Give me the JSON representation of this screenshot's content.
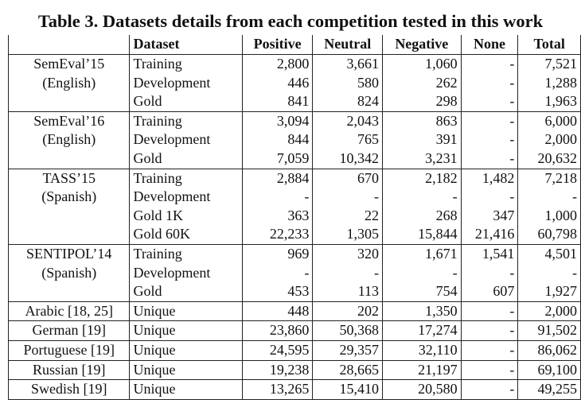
{
  "caption": "Table 3. Datasets details from each competition tested in this work",
  "headers": [
    "",
    "Dataset",
    "Positive",
    "Neutral",
    "Negative",
    "None",
    "Total"
  ],
  "groups": [
    {
      "competition": [
        "SemEval’15",
        "(English)"
      ],
      "rows": [
        {
          "split": "Training",
          "positive": "2,800",
          "neutral": "3,661",
          "negative": "1,060",
          "none": "-",
          "total": "7,521"
        },
        {
          "split": "Development",
          "positive": "446",
          "neutral": "580",
          "negative": "262",
          "none": "-",
          "total": "1,288"
        },
        {
          "split": "Gold",
          "positive": "841",
          "neutral": "824",
          "negative": "298",
          "none": "-",
          "total": "1,963"
        }
      ]
    },
    {
      "competition": [
        "SemEval’16",
        "(English)"
      ],
      "rows": [
        {
          "split": "Training",
          "positive": "3,094",
          "neutral": "2,043",
          "negative": "863",
          "none": "-",
          "total": "6,000"
        },
        {
          "split": "Development",
          "positive": "844",
          "neutral": "765",
          "negative": "391",
          "none": "-",
          "total": "2,000"
        },
        {
          "split": "Gold",
          "positive": "7,059",
          "neutral": "10,342",
          "negative": "3,231",
          "none": "-",
          "total": "20,632"
        }
      ]
    },
    {
      "competition": [
        "TASS’15",
        "(Spanish)"
      ],
      "rows": [
        {
          "split": "Training",
          "positive": "2,884",
          "neutral": "670",
          "negative": "2,182",
          "none": "1,482",
          "total": "7,218"
        },
        {
          "split": "Development",
          "positive": "-",
          "neutral": "-",
          "negative": "-",
          "none": "-",
          "total": "-"
        },
        {
          "split": "Gold 1K",
          "positive": "363",
          "neutral": "22",
          "negative": "268",
          "none": "347",
          "total": "1,000"
        },
        {
          "split": "Gold 60K",
          "positive": "22,233",
          "neutral": "1,305",
          "negative": "15,844",
          "none": "21,416",
          "total": "60,798"
        }
      ]
    },
    {
      "competition": [
        "SENTIPOL’14",
        "(Spanish)"
      ],
      "rows": [
        {
          "split": "Training",
          "positive": "969",
          "neutral": "320",
          "negative": "1,671",
          "none": "1,541",
          "total": "4,501"
        },
        {
          "split": "Development",
          "positive": "-",
          "neutral": "-",
          "negative": "-",
          "none": "-",
          "total": "-"
        },
        {
          "split": "Gold",
          "positive": "453",
          "neutral": "113",
          "negative": "754",
          "none": "607",
          "total": "1,927"
        }
      ]
    },
    {
      "competition": [
        "Arabic [18, 25]"
      ],
      "rows": [
        {
          "split": "Unique",
          "positive": "448",
          "neutral": "202",
          "negative": "1,350",
          "none": "-",
          "total": "2,000"
        }
      ]
    },
    {
      "competition": [
        "German [19]"
      ],
      "rows": [
        {
          "split": "Unique",
          "positive": "23,860",
          "neutral": "50,368",
          "negative": "17,274",
          "none": "-",
          "total": "91,502"
        }
      ]
    },
    {
      "competition": [
        "Portuguese [19]"
      ],
      "rows": [
        {
          "split": "Unique",
          "positive": "24,595",
          "neutral": "29,357",
          "negative": "32,110",
          "none": "-",
          "total": "86,062"
        }
      ]
    },
    {
      "competition": [
        "Russian [19]"
      ],
      "rows": [
        {
          "split": "Unique",
          "positive": "19,238",
          "neutral": "28,665",
          "negative": "21,197",
          "none": "-",
          "total": "69,100"
        }
      ]
    },
    {
      "competition": [
        "Swedish [19]"
      ],
      "rows": [
        {
          "split": "Unique",
          "positive": "13,265",
          "neutral": "15,410",
          "negative": "20,580",
          "none": "-",
          "total": "49,255"
        }
      ]
    }
  ]
}
